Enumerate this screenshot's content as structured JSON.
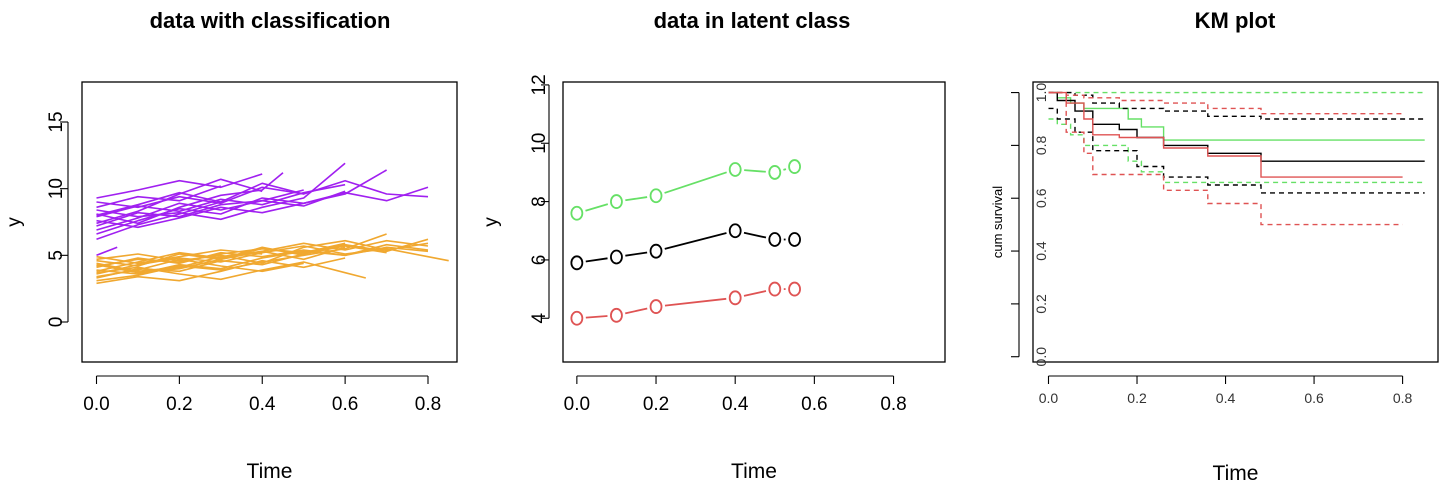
{
  "chart_data": [
    {
      "type": "line",
      "title": "data with classification",
      "xlabel": "Time",
      "ylabel": "y",
      "xlim": [
        -0.035,
        0.87
      ],
      "ylim": [
        -3,
        18
      ],
      "xticks": [
        0.0,
        0.2,
        0.4,
        0.6,
        0.8
      ],
      "xtick_labels": [
        "0.0",
        "0.2",
        "0.4",
        "0.6",
        "0.8"
      ],
      "yticks": [
        0,
        5,
        10,
        15
      ],
      "ytick_labels": [
        "0",
        "5",
        "10",
        "15"
      ],
      "grid": false,
      "legend": "none",
      "groups": [
        {
          "color": "#A020F0",
          "lines": [
            {
              "x": [
                0.0,
                0.1,
                0.2,
                0.3,
                0.4,
                0.5
              ],
              "y": [
                9.0,
                8.6,
                9.4,
                8.9,
                10.1,
                9.6
              ]
            },
            {
              "x": [
                0.0,
                0.1,
                0.2,
                0.3,
                0.4,
                0.5,
                0.6
              ],
              "y": [
                7.2,
                8.2,
                7.9,
                8.8,
                9.1,
                8.7,
                9.8
              ]
            },
            {
              "x": [
                0.0,
                0.1,
                0.2,
                0.3,
                0.4,
                0.45
              ],
              "y": [
                8.1,
                7.4,
                8.6,
                9.5,
                9.9,
                11.2
              ]
            },
            {
              "x": [
                0.0,
                0.1,
                0.2,
                0.3,
                0.4,
                0.5,
                0.6,
                0.7
              ],
              "y": [
                6.6,
                7.6,
                8.5,
                8.1,
                9.3,
                8.9,
                9.6,
                11.4
              ]
            },
            {
              "x": [
                0.0,
                0.1,
                0.2,
                0.3,
                0.4
              ],
              "y": [
                9.3,
                9.9,
                10.6,
                10.1,
                11.1
              ]
            },
            {
              "x": [
                0.0,
                0.1,
                0.2,
                0.3,
                0.4,
                0.5,
                0.6
              ],
              "y": [
                7.9,
                8.7,
                8.3,
                9.2,
                8.8,
                9.7,
                10.3
              ]
            },
            {
              "x": [
                0.0,
                0.1,
                0.2,
                0.3,
                0.4,
                0.5,
                0.6,
                0.7,
                0.8
              ],
              "y": [
                7.6,
                7.1,
                7.8,
                8.6,
                8.2,
                8.9,
                9.7,
                9.1,
                10.1
              ]
            },
            {
              "x": [
                0.0,
                0.1,
                0.2,
                0.3
              ],
              "y": [
                8.6,
                9.4,
                9.1,
                10.2
              ]
            },
            {
              "x": [
                0.0,
                0.1,
                0.2,
                0.3,
                0.4,
                0.5
              ],
              "y": [
                6.9,
                7.8,
                8.9,
                8.4,
                9.1,
                9.9
              ]
            },
            {
              "x": [
                0.0,
                0.1,
                0.2,
                0.3,
                0.4,
                0.5,
                0.6
              ],
              "y": [
                8.4,
                7.9,
                8.2,
                7.7,
                8.6,
                9.3,
                11.9
              ]
            },
            {
              "x": [
                0.0,
                0.1,
                0.2,
                0.3,
                0.4
              ],
              "y": [
                7.4,
                8.3,
                9.6,
                10.7,
                9.8
              ]
            },
            {
              "x": [
                0.0,
                0.1,
                0.2,
                0.3,
                0.4,
                0.5,
                0.6,
                0.7,
                0.8
              ],
              "y": [
                8.0,
                8.8,
                9.7,
                9.0,
                10.4,
                9.6,
                10.6,
                9.6,
                9.4
              ]
            },
            {
              "x": [
                0.0,
                0.1,
                0.2,
                0.3
              ],
              "y": [
                6.2,
                7.3,
                8.1,
                9.0
              ]
            },
            {
              "x": [
                0.0,
                0.05
              ],
              "y": [
                5.0,
                5.6
              ]
            }
          ]
        },
        {
          "color": "#F0A830",
          "lines": [
            {
              "x": [
                0.0,
                0.1,
                0.2,
                0.3,
                0.4,
                0.5,
                0.6
              ],
              "y": [
                4.2,
                4.7,
                4.5,
                5.1,
                5.5,
                5.2,
                5.9
              ]
            },
            {
              "x": [
                0.0,
                0.1,
                0.2,
                0.3,
                0.4,
                0.5,
                0.6,
                0.7,
                0.8
              ],
              "y": [
                3.9,
                3.6,
                4.3,
                4.0,
                4.8,
                5.3,
                5.0,
                5.6,
                5.3
              ]
            },
            {
              "x": [
                0.0,
                0.1,
                0.2,
                0.3,
                0.4,
                0.5
              ],
              "y": [
                4.6,
                4.2,
                5.1,
                4.7,
                5.6,
                5.0
              ]
            },
            {
              "x": [
                0.0,
                0.1,
                0.2,
                0.3,
                0.4,
                0.5,
                0.6,
                0.7
              ],
              "y": [
                3.3,
                4.0,
                3.8,
                4.6,
                4.3,
                5.1,
                5.7,
                5.2
              ]
            },
            {
              "x": [
                0.0,
                0.1,
                0.2,
                0.3,
                0.4
              ],
              "y": [
                4.9,
                4.4,
                4.9,
                5.4,
                5.1
              ]
            },
            {
              "x": [
                0.0,
                0.1,
                0.2,
                0.3,
                0.4,
                0.5,
                0.6,
                0.7,
                0.8,
                0.85
              ],
              "y": [
                3.6,
                4.3,
                4.8,
                4.5,
                5.2,
                5.7,
                5.1,
                5.5,
                4.9,
                4.6
              ]
            },
            {
              "x": [
                0.0,
                0.1,
                0.2,
                0.3,
                0.4,
                0.5,
                0.6
              ],
              "y": [
                4.4,
                3.8,
                4.1,
                4.9,
                5.3,
                4.7,
                5.6
              ]
            },
            {
              "x": [
                0.0,
                0.1,
                0.2,
                0.3,
                0.4,
                0.5,
                0.6,
                0.7
              ],
              "y": [
                3.1,
                3.5,
                4.2,
                3.9,
                4.5,
                5.0,
                5.5,
                6.6
              ]
            },
            {
              "x": [
                0.0,
                0.1,
                0.2,
                0.3,
                0.4,
                0.5,
                0.6,
                0.7,
                0.8
              ],
              "y": [
                4.1,
                4.8,
                4.4,
                5.2,
                4.9,
                5.4,
                5.0,
                5.8,
                5.4
              ]
            },
            {
              "x": [
                0.0,
                0.1,
                0.2,
                0.3,
                0.4,
                0.5,
                0.6,
                0.65
              ],
              "y": [
                3.7,
                4.1,
                3.6,
                3.2,
                3.9,
                4.5,
                3.7,
                3.3
              ]
            },
            {
              "x": [
                0.0,
                0.1,
                0.2,
                0.3,
                0.4,
                0.5,
                0.6,
                0.7,
                0.8
              ],
              "y": [
                4.7,
                5.1,
                4.6,
                5.0,
                4.4,
                5.6,
                6.1,
                5.4,
                5.9
              ]
            },
            {
              "x": [
                0.0,
                0.1,
                0.2,
                0.3,
                0.4,
                0.5
              ],
              "y": [
                3.4,
                3.9,
                4.7,
                4.2,
                3.8,
                4.4
              ]
            },
            {
              "x": [
                0.0,
                0.1,
                0.2,
                0.3,
                0.4,
                0.5,
                0.6
              ],
              "y": [
                2.9,
                3.4,
                3.1,
                3.8,
                4.6,
                4.1,
                4.8
              ]
            },
            {
              "x": [
                0.0,
                0.1,
                0.2,
                0.3,
                0.4,
                0.5,
                0.6,
                0.7,
                0.8
              ],
              "y": [
                4.3,
                3.7,
                4.0,
                4.7,
                5.3,
                5.9,
                5.4,
                6.1,
                5.7
              ]
            },
            {
              "x": [
                0.0,
                0.1,
                0.2,
                0.3,
                0.4,
                0.5,
                0.6,
                0.7,
                0.8
              ],
              "y": [
                3.8,
                4.5,
                5.2,
                4.8,
                5.5,
                5.1,
                5.8,
                5.3,
                6.2
              ]
            }
          ]
        }
      ]
    },
    {
      "type": "line",
      "title": "data in latent class",
      "xlabel": "Time",
      "ylabel": "y",
      "xlim": [
        -0.035,
        0.93
      ],
      "ylim": [
        2.5,
        12.1
      ],
      "xticks": [
        0.0,
        0.2,
        0.4,
        0.6,
        0.8
      ],
      "xtick_labels": [
        "0.0",
        "0.2",
        "0.4",
        "0.6",
        "0.8"
      ],
      "yticks": [
        4,
        6,
        8,
        10,
        12
      ],
      "ytick_labels": [
        "4",
        "6",
        "8",
        "10",
        "12"
      ],
      "grid": false,
      "legend": "none",
      "series": [
        {
          "color": "#66E066",
          "x": [
            0.0,
            0.1,
            0.2,
            0.4,
            0.5,
            0.55
          ],
          "y": [
            7.6,
            8.0,
            8.2,
            9.1,
            9.0,
            9.2
          ]
        },
        {
          "color": "#000000",
          "x": [
            0.0,
            0.1,
            0.2,
            0.4,
            0.5,
            0.55
          ],
          "y": [
            5.9,
            6.1,
            6.3,
            7.0,
            6.7,
            6.7
          ]
        },
        {
          "color": "#DF5353",
          "x": [
            0.0,
            0.1,
            0.2,
            0.4,
            0.5,
            0.55
          ],
          "y": [
            4.0,
            4.1,
            4.4,
            4.7,
            5.0,
            5.0
          ]
        }
      ]
    },
    {
      "type": "line",
      "title": "KM plot",
      "xlabel": "Time",
      "ylabel": "cum survival",
      "xlim": [
        -0.035,
        0.88
      ],
      "ylim": [
        -0.02,
        1.04
      ],
      "xticks": [
        0.0,
        0.2,
        0.4,
        0.6,
        0.8
      ],
      "xtick_labels": [
        "0.0",
        "0.2",
        "0.4",
        "0.6",
        "0.8"
      ],
      "yticks": [
        0.0,
        0.2,
        0.4,
        0.6,
        0.8,
        1.0
      ],
      "ytick_labels": [
        "0.0",
        "0.2",
        "0.4",
        "0.6",
        "0.8",
        "1.0"
      ],
      "grid": false,
      "legend": "none",
      "steps": [
        {
          "color": "#66E066",
          "dash": false,
          "x": [
            0.0,
            0.02,
            0.05,
            0.08,
            0.18,
            0.21,
            0.26,
            0.85
          ],
          "y": [
            1.0,
            0.98,
            0.96,
            0.94,
            0.9,
            0.87,
            0.82,
            0.82
          ]
        },
        {
          "color": "#66E066",
          "dash": true,
          "x": [
            0.0,
            0.85
          ],
          "y": [
            1.0,
            1.0
          ]
        },
        {
          "color": "#66E066",
          "dash": true,
          "x": [
            0.0,
            0.02,
            0.05,
            0.08,
            0.18,
            0.21,
            0.26,
            0.85
          ],
          "y": [
            0.9,
            0.88,
            0.84,
            0.8,
            0.74,
            0.7,
            0.66,
            0.66
          ]
        },
        {
          "color": "#000000",
          "dash": false,
          "x": [
            0.0,
            0.02,
            0.06,
            0.1,
            0.16,
            0.2,
            0.26,
            0.36,
            0.48,
            0.85
          ],
          "y": [
            1.0,
            0.97,
            0.93,
            0.88,
            0.86,
            0.83,
            0.8,
            0.77,
            0.74,
            0.74
          ]
        },
        {
          "color": "#000000",
          "dash": true,
          "x": [
            0.0,
            0.06,
            0.1,
            0.16,
            0.26,
            0.36,
            0.48,
            0.85
          ],
          "y": [
            1.0,
            0.99,
            0.96,
            0.94,
            0.93,
            0.91,
            0.9,
            0.9
          ]
        },
        {
          "color": "#000000",
          "dash": true,
          "x": [
            0.0,
            0.02,
            0.06,
            0.1,
            0.2,
            0.26,
            0.36,
            0.48,
            0.85
          ],
          "y": [
            0.94,
            0.9,
            0.85,
            0.78,
            0.72,
            0.68,
            0.65,
            0.62,
            0.62
          ]
        },
        {
          "color": "#DF5353",
          "dash": false,
          "x": [
            0.0,
            0.04,
            0.08,
            0.1,
            0.16,
            0.26,
            0.36,
            0.48,
            0.8
          ],
          "y": [
            1.0,
            0.96,
            0.9,
            0.84,
            0.83,
            0.79,
            0.76,
            0.68,
            0.68
          ]
        },
        {
          "color": "#DF5353",
          "dash": true,
          "x": [
            0.0,
            0.04,
            0.08,
            0.16,
            0.26,
            0.36,
            0.48,
            0.8
          ],
          "y": [
            1.0,
            0.99,
            0.98,
            0.97,
            0.96,
            0.94,
            0.92,
            0.92
          ]
        },
        {
          "color": "#DF5353",
          "dash": true,
          "x": [
            0.0,
            0.04,
            0.08,
            0.1,
            0.16,
            0.26,
            0.36,
            0.48,
            0.8
          ],
          "y": [
            1.0,
            0.85,
            0.77,
            0.69,
            0.69,
            0.63,
            0.58,
            0.5,
            0.5
          ]
        }
      ]
    }
  ]
}
